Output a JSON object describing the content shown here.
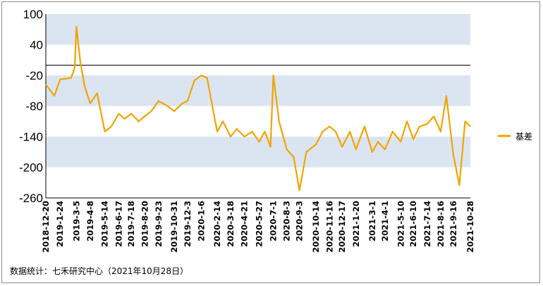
{
  "chart_data": {
    "type": "line",
    "title": "",
    "xlabel": "",
    "ylabel": "",
    "ylim": [
      -260,
      100
    ],
    "yticks": [
      100,
      40,
      -20,
      -80,
      -140,
      -200,
      -260
    ],
    "ytick_labels": [
      "100",
      "40",
      "-20",
      "-80",
      "-140",
      "-200",
      "-260"
    ],
    "reference_line": 0,
    "band_color": "#dbe5f1",
    "legend_position": "right",
    "xtick_labels": [
      "2018-12-20",
      "2019-1-24",
      "2019-3-5",
      "2019-4-8",
      "2019-5-14",
      "2019-6-17",
      "2019-7-18",
      "2019-8-20",
      "2019-9-23",
      "2019-10-31",
      "2019-12-3",
      "2020-1-6",
      "2020-2-14",
      "2020-3-18",
      "2020-4-21",
      "2020-5-27",
      "2020-7-1",
      "2020-8-3",
      "2020-9-3",
      "2020-10-14",
      "2020-11-16",
      "2020-12-17",
      "2021-1-20",
      "2021-3-1",
      "2021-4-1",
      "2021-5-10",
      "2021-6-10",
      "2021-7-14",
      "2021-8-16",
      "2021-9-16",
      "2021-10-28"
    ],
    "series": [
      {
        "name": "基差",
        "color": "#f2a400",
        "x": [
          "2018-12-20",
          "2019-1-10",
          "2019-1-24",
          "2019-2-20",
          "2019-3-1",
          "2019-3-5",
          "2019-3-15",
          "2019-3-25",
          "2019-4-8",
          "2019-4-25",
          "2019-5-14",
          "2019-5-30",
          "2019-6-17",
          "2019-7-1",
          "2019-7-18",
          "2019-8-5",
          "2019-8-20",
          "2019-9-5",
          "2019-9-23",
          "2019-10-15",
          "2019-10-31",
          "2019-11-20",
          "2019-12-3",
          "2019-12-20",
          "2020-1-6",
          "2020-1-20",
          "2020-2-14",
          "2020-2-28",
          "2020-3-18",
          "2020-4-2",
          "2020-4-21",
          "2020-5-10",
          "2020-5-27",
          "2020-6-10",
          "2020-6-24",
          "2020-7-1",
          "2020-7-15",
          "2020-8-3",
          "2020-8-20",
          "2020-9-3",
          "2020-9-20",
          "2020-10-14",
          "2020-10-30",
          "2020-11-16",
          "2020-12-1",
          "2020-12-17",
          "2021-1-5",
          "2021-1-20",
          "2021-2-10",
          "2021-3-1",
          "2021-3-15",
          "2021-4-1",
          "2021-4-20",
          "2021-5-10",
          "2021-5-25",
          "2021-6-10",
          "2021-6-25",
          "2021-7-14",
          "2021-7-30",
          "2021-8-16",
          "2021-8-30",
          "2021-9-16",
          "2021-10-1",
          "2021-10-15",
          "2021-10-28"
        ],
        "values": [
          -38,
          -60,
          -28,
          -25,
          -5,
          75,
          5,
          -40,
          -75,
          -55,
          -130,
          -120,
          -95,
          -105,
          -95,
          -110,
          -100,
          -90,
          -70,
          -80,
          -90,
          -75,
          -70,
          -30,
          -20,
          -25,
          -130,
          -110,
          -140,
          -125,
          -140,
          -130,
          -150,
          -130,
          -160,
          -20,
          -110,
          -165,
          -180,
          -245,
          -170,
          -155,
          -130,
          -120,
          -130,
          -160,
          -130,
          -165,
          -120,
          -170,
          -150,
          -165,
          -130,
          -150,
          -110,
          -145,
          -120,
          -115,
          -100,
          -130,
          -60,
          -175,
          -235,
          -110,
          -120
        ]
      }
    ]
  },
  "source_text": "数据统计：七禾研究中心（2021年10月28日）"
}
